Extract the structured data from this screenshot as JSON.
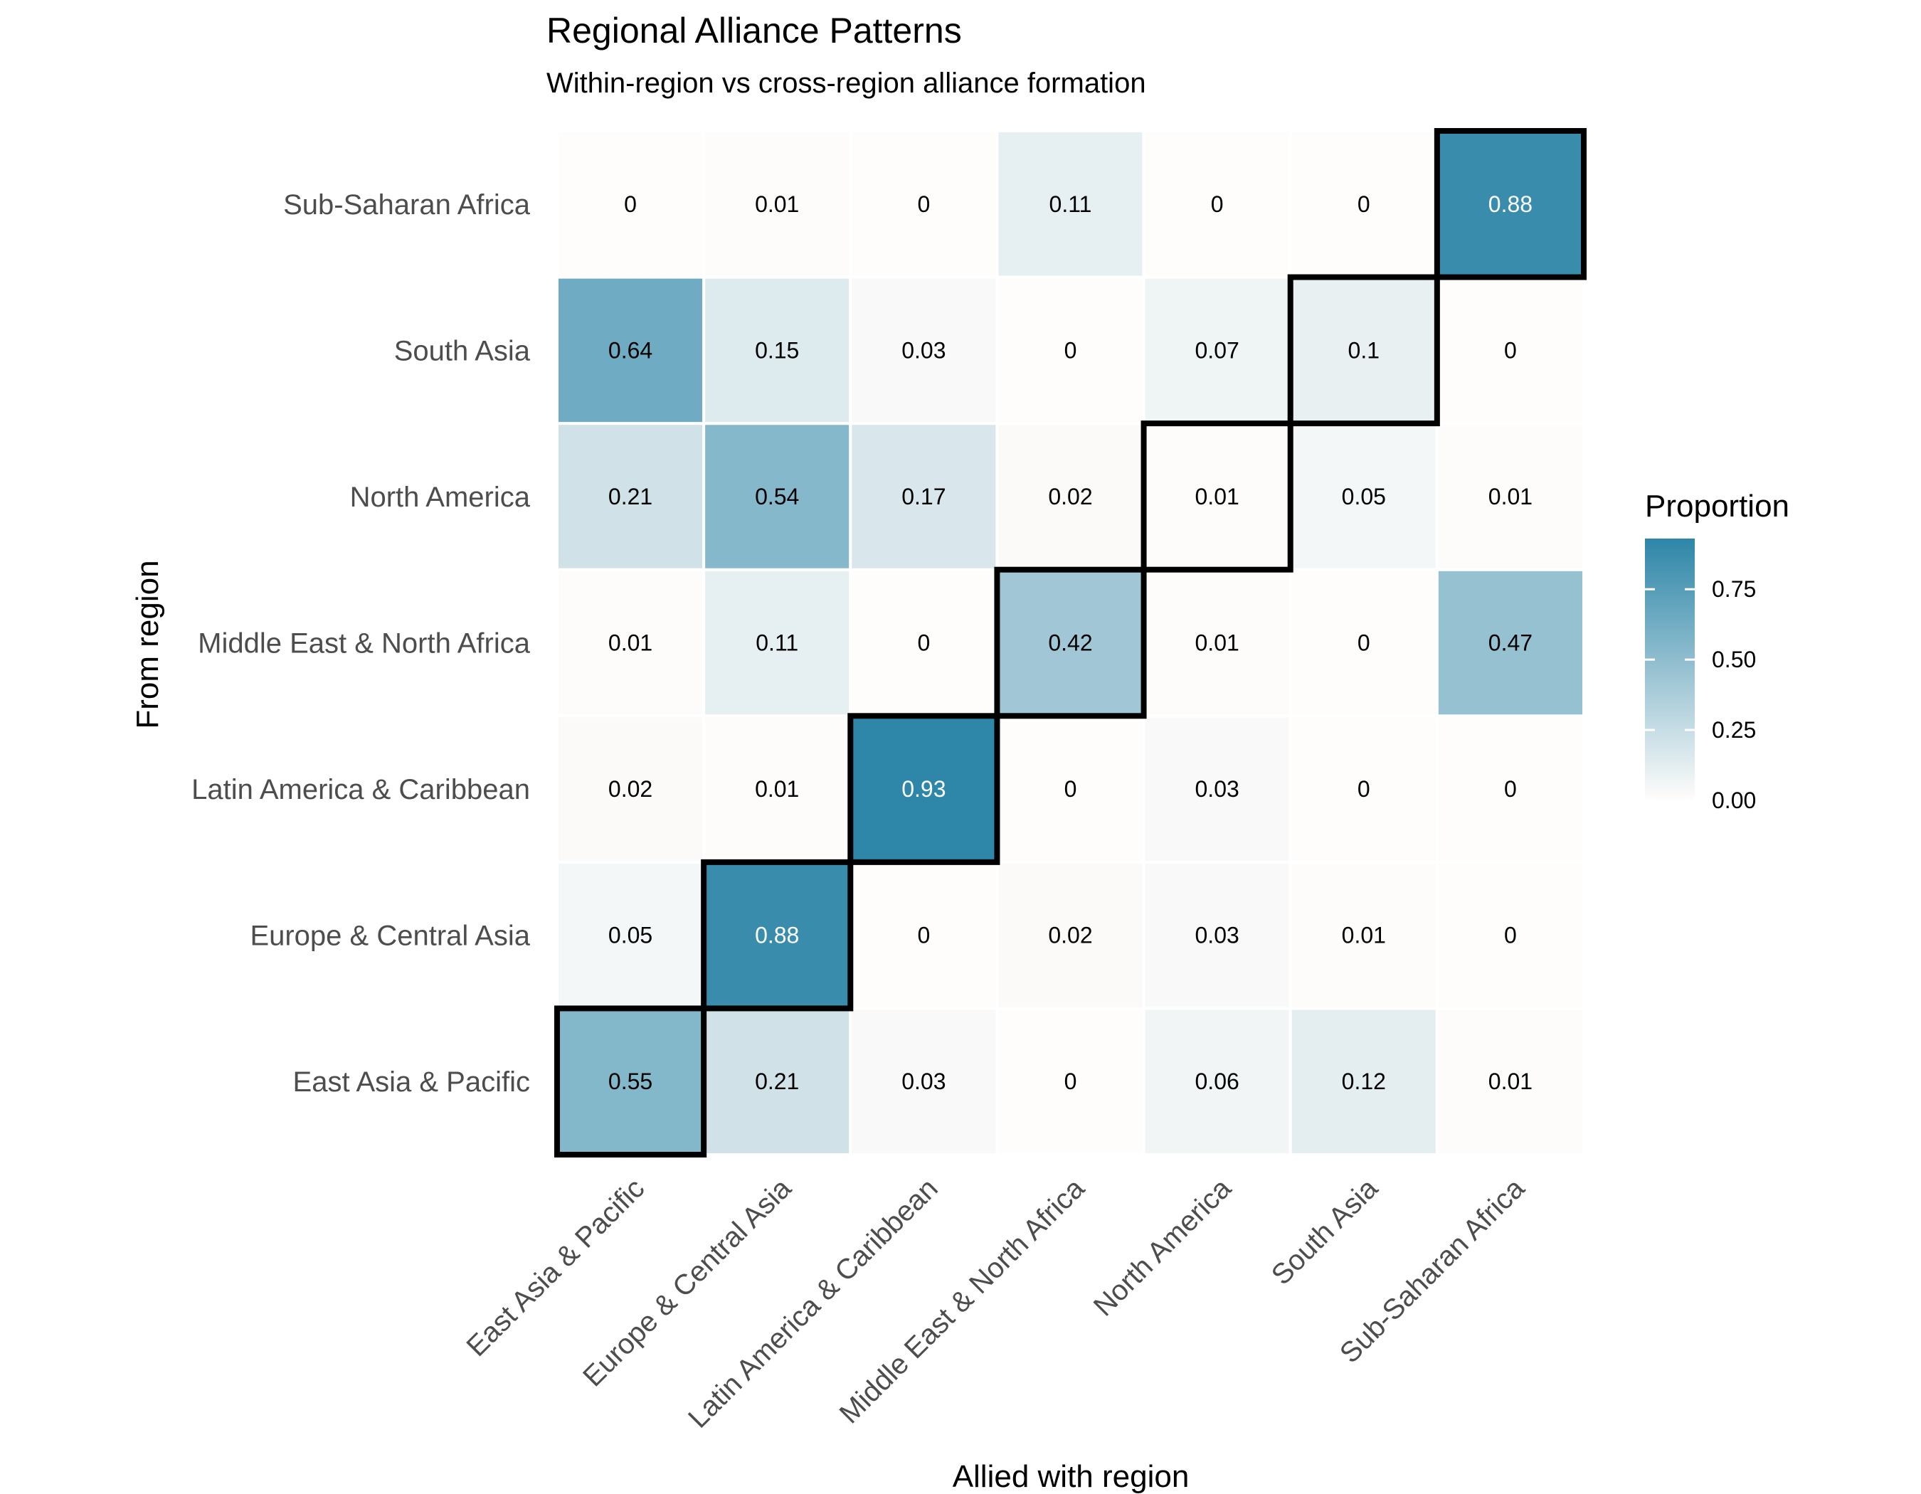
{
  "chart_data": {
    "type": "heatmap",
    "title": "Regional Alliance Patterns",
    "subtitle": "Within-region vs cross-region alliance formation",
    "xlabel": "Allied with region",
    "ylabel": "From region",
    "x_categories": [
      "East Asia & Pacific",
      "Europe & Central Asia",
      "Latin America & Caribbean",
      "Middle East & North Africa",
      "North America",
      "South Asia",
      "Sub-Saharan Africa"
    ],
    "y_categories": [
      "East Asia & Pacific",
      "Europe & Central Asia",
      "Latin America & Caribbean",
      "Middle East & North Africa",
      "North America",
      "South Asia",
      "Sub-Saharan Africa"
    ],
    "values": [
      [
        0.55,
        0.21,
        0.03,
        0,
        0.06,
        0.12,
        0.01
      ],
      [
        0.05,
        0.88,
        0,
        0.02,
        0.03,
        0.01,
        0
      ],
      [
        0.02,
        0.01,
        0.93,
        0,
        0.03,
        0,
        0
      ],
      [
        0.01,
        0.11,
        0,
        0.42,
        0.01,
        0,
        0.47
      ],
      [
        0.21,
        0.54,
        0.17,
        0.02,
        0.01,
        0.05,
        0.01
      ],
      [
        0.64,
        0.15,
        0.03,
        0,
        0.07,
        0.1,
        0
      ],
      [
        0,
        0.01,
        0,
        0.11,
        0,
        0,
        0.88
      ]
    ],
    "highlighted_cells": "diagonal (within-region)",
    "legend": {
      "title": "Proportion",
      "ticks": [
        "0.00",
        "0.25",
        "0.50",
        "0.75"
      ],
      "range": [
        0,
        0.93
      ],
      "position": "right"
    },
    "colors": {
      "low": "#fffdfb",
      "high": "#2e86a8",
      "highlight_border": "#000000",
      "cell_border": "#ffffff"
    }
  }
}
